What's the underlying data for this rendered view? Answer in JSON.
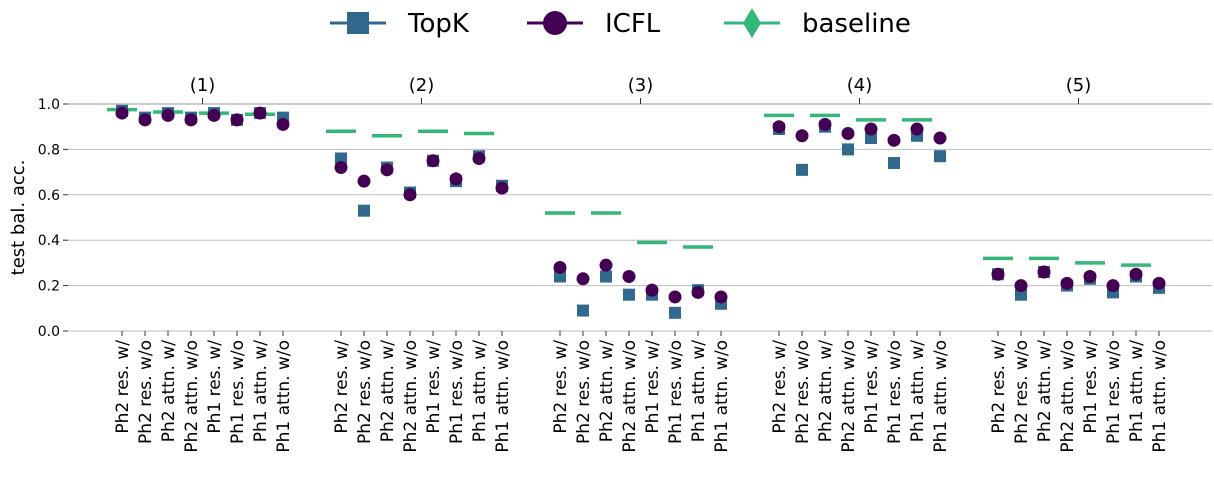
{
  "chart_data": {
    "type": "scatter",
    "ylabel": "test bal. acc.",
    "ylim": [
      0.0,
      1.0
    ],
    "yticks": [
      "0.0",
      "0.2",
      "0.4",
      "0.6",
      "0.8",
      "1.0"
    ],
    "grid": "horizontal",
    "legend_position": "top-center",
    "categories": [
      "Ph2 res. w/",
      "Ph2 res. w/o",
      "Ph2 attn. w/",
      "Ph2 attn. w/o",
      "Ph1 res. w/",
      "Ph1 res. w/o",
      "Ph1 attn. w/",
      "Ph1 attn. w/o"
    ],
    "groups": [
      {
        "title": "(1)",
        "topk": [
          0.97,
          0.94,
          0.96,
          0.94,
          0.96,
          0.93,
          0.96,
          0.94
        ],
        "icfl": [
          0.96,
          0.93,
          0.95,
          0.93,
          0.95,
          0.93,
          0.96,
          0.91
        ],
        "baseline": [
          0.975,
          null,
          0.965,
          null,
          0.96,
          null,
          0.955,
          null
        ]
      },
      {
        "title": "(2)",
        "topk": [
          0.76,
          0.53,
          0.72,
          0.61,
          0.75,
          0.66,
          0.77,
          0.64
        ],
        "icfl": [
          0.72,
          0.66,
          0.71,
          0.6,
          0.75,
          0.67,
          0.76,
          0.63
        ],
        "baseline": [
          0.88,
          null,
          0.86,
          null,
          0.88,
          null,
          0.87,
          null
        ]
      },
      {
        "title": "(3)",
        "topk": [
          0.24,
          0.09,
          0.24,
          0.16,
          0.16,
          0.08,
          0.18,
          0.12
        ],
        "icfl": [
          0.28,
          0.23,
          0.29,
          0.24,
          0.18,
          0.15,
          0.17,
          0.15
        ],
        "baseline": [
          0.52,
          null,
          0.52,
          null,
          0.39,
          null,
          0.37,
          null
        ]
      },
      {
        "title": "(4)",
        "topk": [
          0.89,
          0.71,
          0.9,
          0.8,
          0.85,
          0.74,
          0.86,
          0.77
        ],
        "icfl": [
          0.9,
          0.86,
          0.91,
          0.87,
          0.89,
          0.84,
          0.89,
          0.85
        ],
        "baseline": [
          0.95,
          null,
          0.95,
          null,
          0.93,
          null,
          0.93,
          null
        ]
      },
      {
        "title": "(5)",
        "topk": [
          0.25,
          0.16,
          0.26,
          0.2,
          0.23,
          0.17,
          0.24,
          0.19
        ],
        "icfl": [
          0.25,
          0.2,
          0.26,
          0.21,
          0.24,
          0.2,
          0.25,
          0.21
        ],
        "baseline": [
          0.32,
          null,
          0.32,
          null,
          0.3,
          null,
          0.29,
          null
        ]
      }
    ],
    "series": [
      {
        "name": "TopK",
        "key": "topk",
        "color": "#31688e",
        "marker": "square"
      },
      {
        "name": "ICFL",
        "key": "icfl",
        "color": "#440154",
        "marker": "circle"
      },
      {
        "name": "baseline",
        "key": "baseline",
        "color": "#35b779",
        "marker": "diamond"
      }
    ]
  }
}
